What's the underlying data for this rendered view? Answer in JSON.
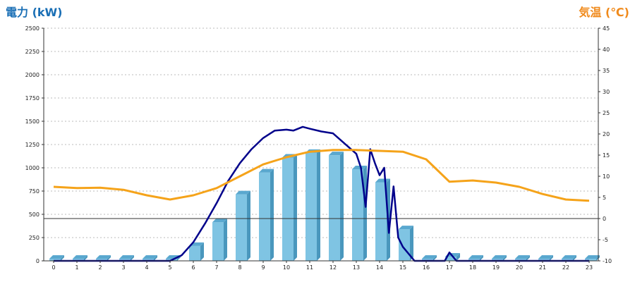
{
  "chart_data": {
    "type": "bar+line",
    "left_axis": {
      "label": "電力 (kW)",
      "range": [
        0,
        2500
      ],
      "ticks": [
        0,
        250,
        500,
        750,
        1000,
        1250,
        1500,
        1750,
        2000,
        2250,
        2500
      ]
    },
    "right_axis": {
      "label": "気温 (℃)",
      "range": [
        -10,
        45
      ],
      "ticks": [
        -10,
        -5,
        0,
        5,
        10,
        15,
        20,
        25,
        30,
        35,
        40,
        45
      ]
    },
    "categories": [
      "0",
      "1",
      "2",
      "3",
      "4",
      "5",
      "6",
      "7",
      "8",
      "9",
      "10",
      "11",
      "12",
      "13",
      "14",
      "15",
      "16",
      "17",
      "18",
      "19",
      "20",
      "21",
      "22",
      "23"
    ],
    "grid": true,
    "series": [
      {
        "kind": "bar",
        "axis": "left",
        "color": "#7fc4e3",
        "values": [
          0,
          0,
          0,
          0,
          0,
          0,
          160,
          415,
          715,
          950,
          1110,
          1160,
          1135,
          985,
          845,
          340,
          0,
          45,
          0,
          0,
          0,
          0,
          0,
          0
        ]
      },
      {
        "kind": "line",
        "axis": "left",
        "color": "#00008b",
        "x": [
          0,
          5,
          5.5,
          6,
          6.5,
          7,
          7.5,
          8,
          8.5,
          9,
          9.5,
          10,
          10.3,
          10.7,
          11,
          11.5,
          12,
          12.5,
          13,
          13.2,
          13.4,
          13.6,
          13.8,
          14,
          14.2,
          14.4,
          14.6,
          14.8,
          15,
          15.5,
          16,
          16.8,
          17,
          17.3,
          18,
          23
        ],
        "y": [
          0,
          0,
          60,
          200,
          400,
          620,
          860,
          1050,
          1200,
          1320,
          1400,
          1410,
          1400,
          1440,
          1420,
          1390,
          1370,
          1260,
          1150,
          1000,
          580,
          1200,
          1050,
          920,
          1000,
          300,
          800,
          250,
          150,
          0,
          0,
          0,
          90,
          0,
          0,
          0
        ]
      },
      {
        "kind": "line",
        "axis": "right",
        "color": "#f5a31a",
        "x": [
          0,
          1,
          2,
          3,
          4,
          5,
          6,
          7,
          8,
          9,
          10,
          11,
          12,
          13,
          14,
          15,
          16,
          17,
          18,
          19,
          20,
          21,
          22,
          23
        ],
        "y": [
          7.5,
          7.2,
          7.3,
          6.8,
          5.5,
          4.5,
          5.5,
          7.2,
          10,
          12.8,
          14.5,
          15.8,
          16.2,
          16.2,
          16,
          15.8,
          14,
          8.7,
          9,
          8.5,
          7.5,
          5.8,
          4.5,
          4.2
        ]
      }
    ]
  }
}
